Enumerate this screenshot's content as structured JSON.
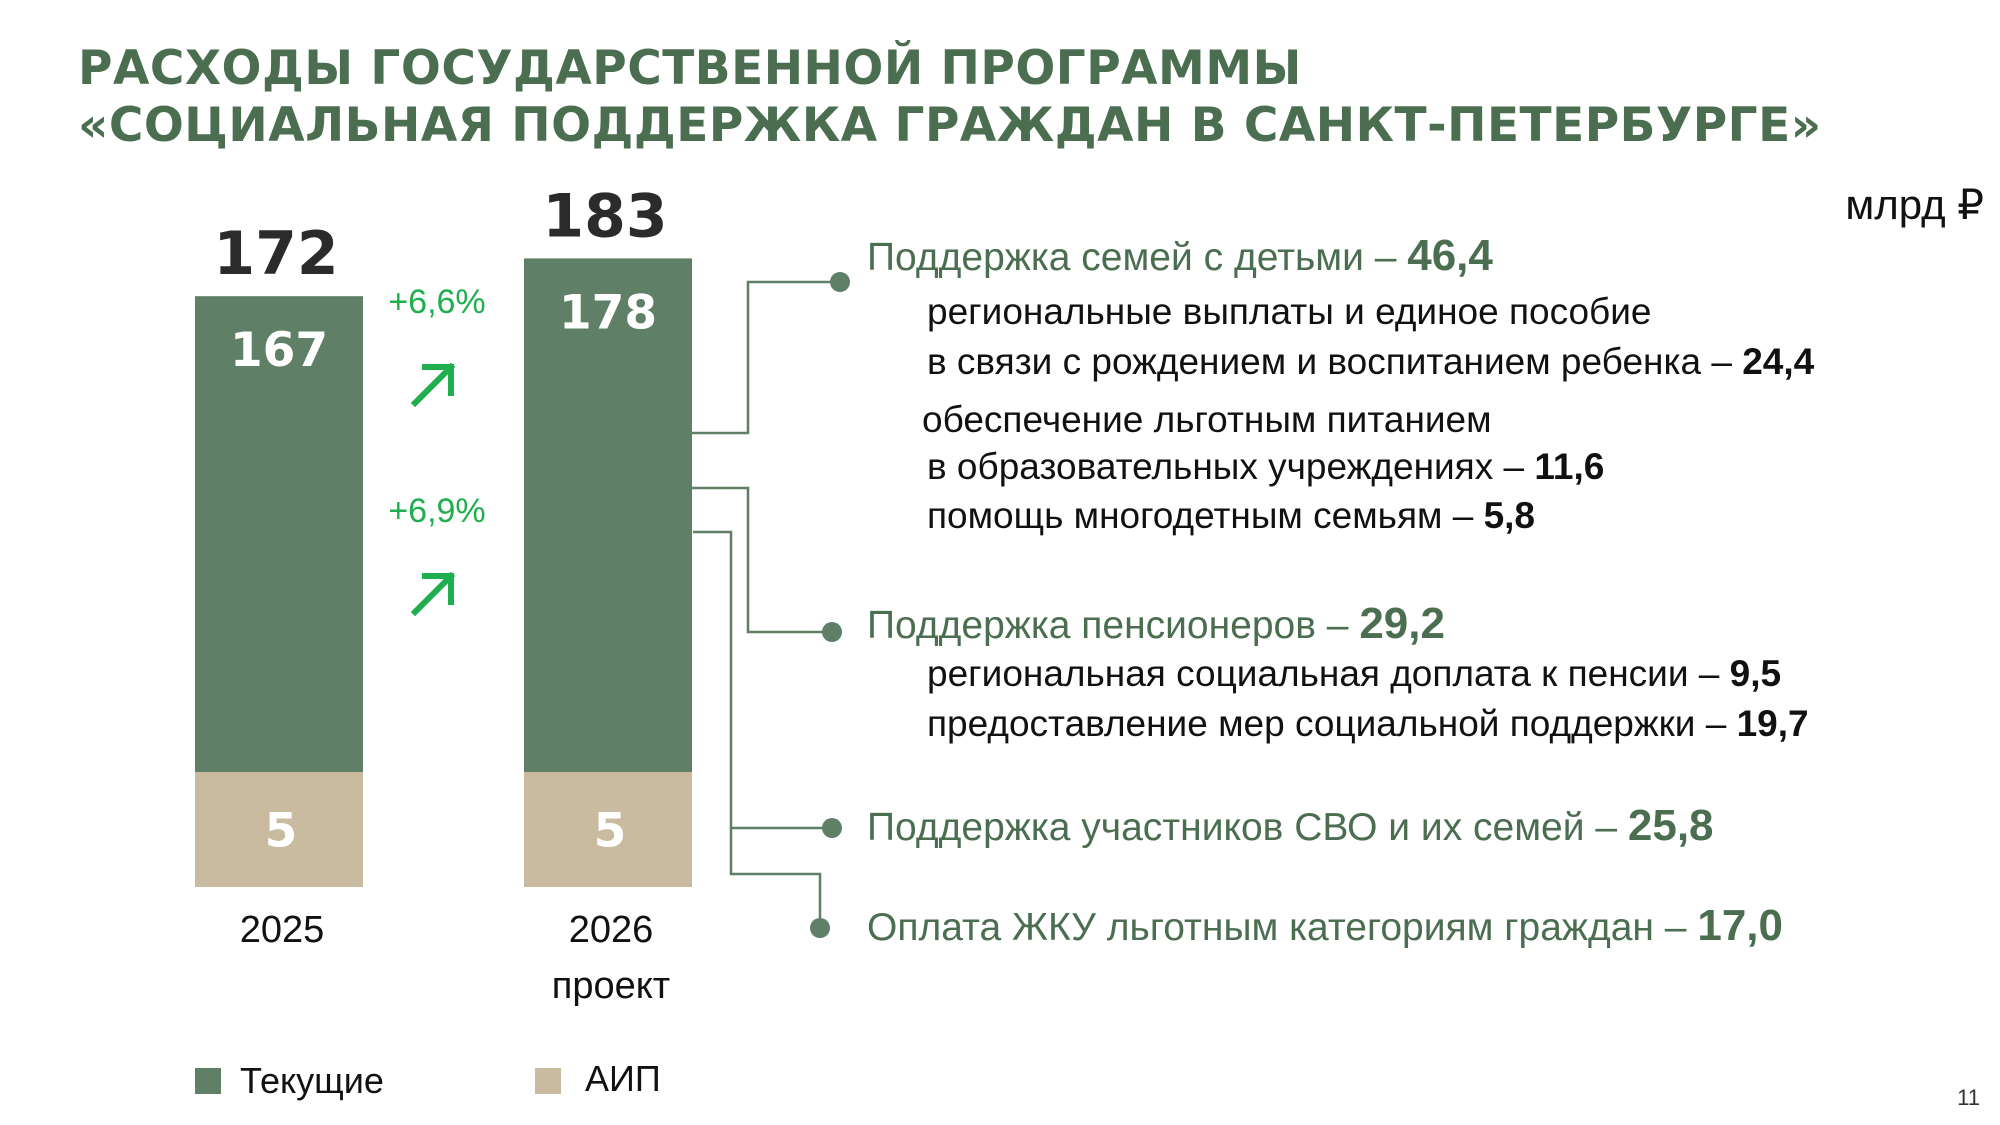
{
  "title": {
    "line1": "РАСХОДЫ ГОСУДАРСТВЕННОЙ ПРОГРАММЫ",
    "line2": "«СОЦИАЛЬНАЯ ПОДДЕРЖКА ГРАЖДАН В САНКТ-ПЕТЕРБУРГЕ»"
  },
  "unit": "млрд ₽",
  "page_number": "11",
  "colors": {
    "current": "#5f7f67",
    "aip": "#c9bba0",
    "accent": "#4b6e51",
    "growth": "#1faf4f",
    "arrow_icon": "#1faf4f"
  },
  "chart_data": {
    "type": "bar",
    "stacked": true,
    "categories": [
      "2025",
      "2026 проект"
    ],
    "category_lines": [
      [
        "2025"
      ],
      [
        "2026",
        "проект"
      ]
    ],
    "series": [
      {
        "name": "Текущие",
        "values": [
          167,
          178
        ]
      },
      {
        "name": "АИП",
        "values": [
          5,
          5
        ]
      }
    ],
    "totals": [
      172,
      183
    ],
    "total_labels": [
      "172",
      "183"
    ],
    "current_labels": [
      "167",
      "178"
    ],
    "aip_labels": [
      "5",
      "5"
    ],
    "growth": {
      "total": "+6,6%",
      "current": "+6,9%"
    },
    "growth_icon": "arrow-up-right-icon",
    "legend": [
      "Текущие",
      "АИП"
    ],
    "legend_position": "bottom",
    "ylim": [
      0,
      200
    ],
    "grid": false
  },
  "categories": [
    {
      "head": "Поддержка семей с детьми – ",
      "value": "46,4",
      "sub": [
        {
          "text": "региональные выплаты и единое пособие",
          "value": ""
        },
        {
          "text": "в связи с рождением и воспитанием ребенка – ",
          "value": "24,4"
        },
        {
          "text": "обеспечение льготным питанием",
          "value": ""
        },
        {
          "text": "в образовательных учреждениях – ",
          "value": "11,6"
        },
        {
          "text": "помощь многодетным семьям – ",
          "value": "5,8"
        }
      ]
    },
    {
      "head": "Поддержка пенсионеров  – ",
      "value": "29,2",
      "sub": [
        {
          "text": "региональная социальная доплата к пенсии – ",
          "value": "9,5"
        },
        {
          "text": "предоставление мер социальной поддержки – ",
          "value": "19,7"
        }
      ]
    },
    {
      "head": "Поддержка участников СВО и их семей  – ",
      "value": "25,8",
      "sub": []
    },
    {
      "head": "Оплата ЖКУ льготным категориям граждан – ",
      "value": "17,0",
      "sub": []
    }
  ]
}
